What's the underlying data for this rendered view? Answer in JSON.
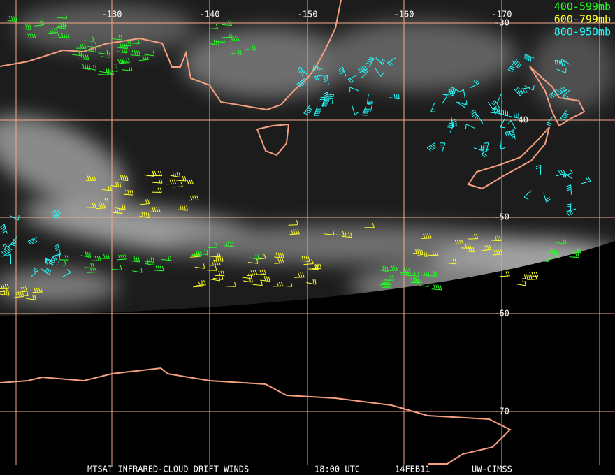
{
  "longitude_labels": [
    "-130",
    "-140",
    "-150",
    "-160",
    "-170"
  ],
  "latitude_labels": [
    "-30",
    "-40",
    "-50",
    "-60",
    "-70"
  ],
  "legend": [
    {
      "label": "400-599mb",
      "color": "#22ff22"
    },
    {
      "label": "600-799mb",
      "color": "#ffff22"
    },
    {
      "label": "800-950mb",
      "color": "#22ffff"
    }
  ],
  "footer": {
    "product": "MTSAT INFRARED-CLOUD DRIFT WINDS",
    "time": "18:00 UTC",
    "date": "14FEB11",
    "source": "UW-CIMSS"
  }
}
